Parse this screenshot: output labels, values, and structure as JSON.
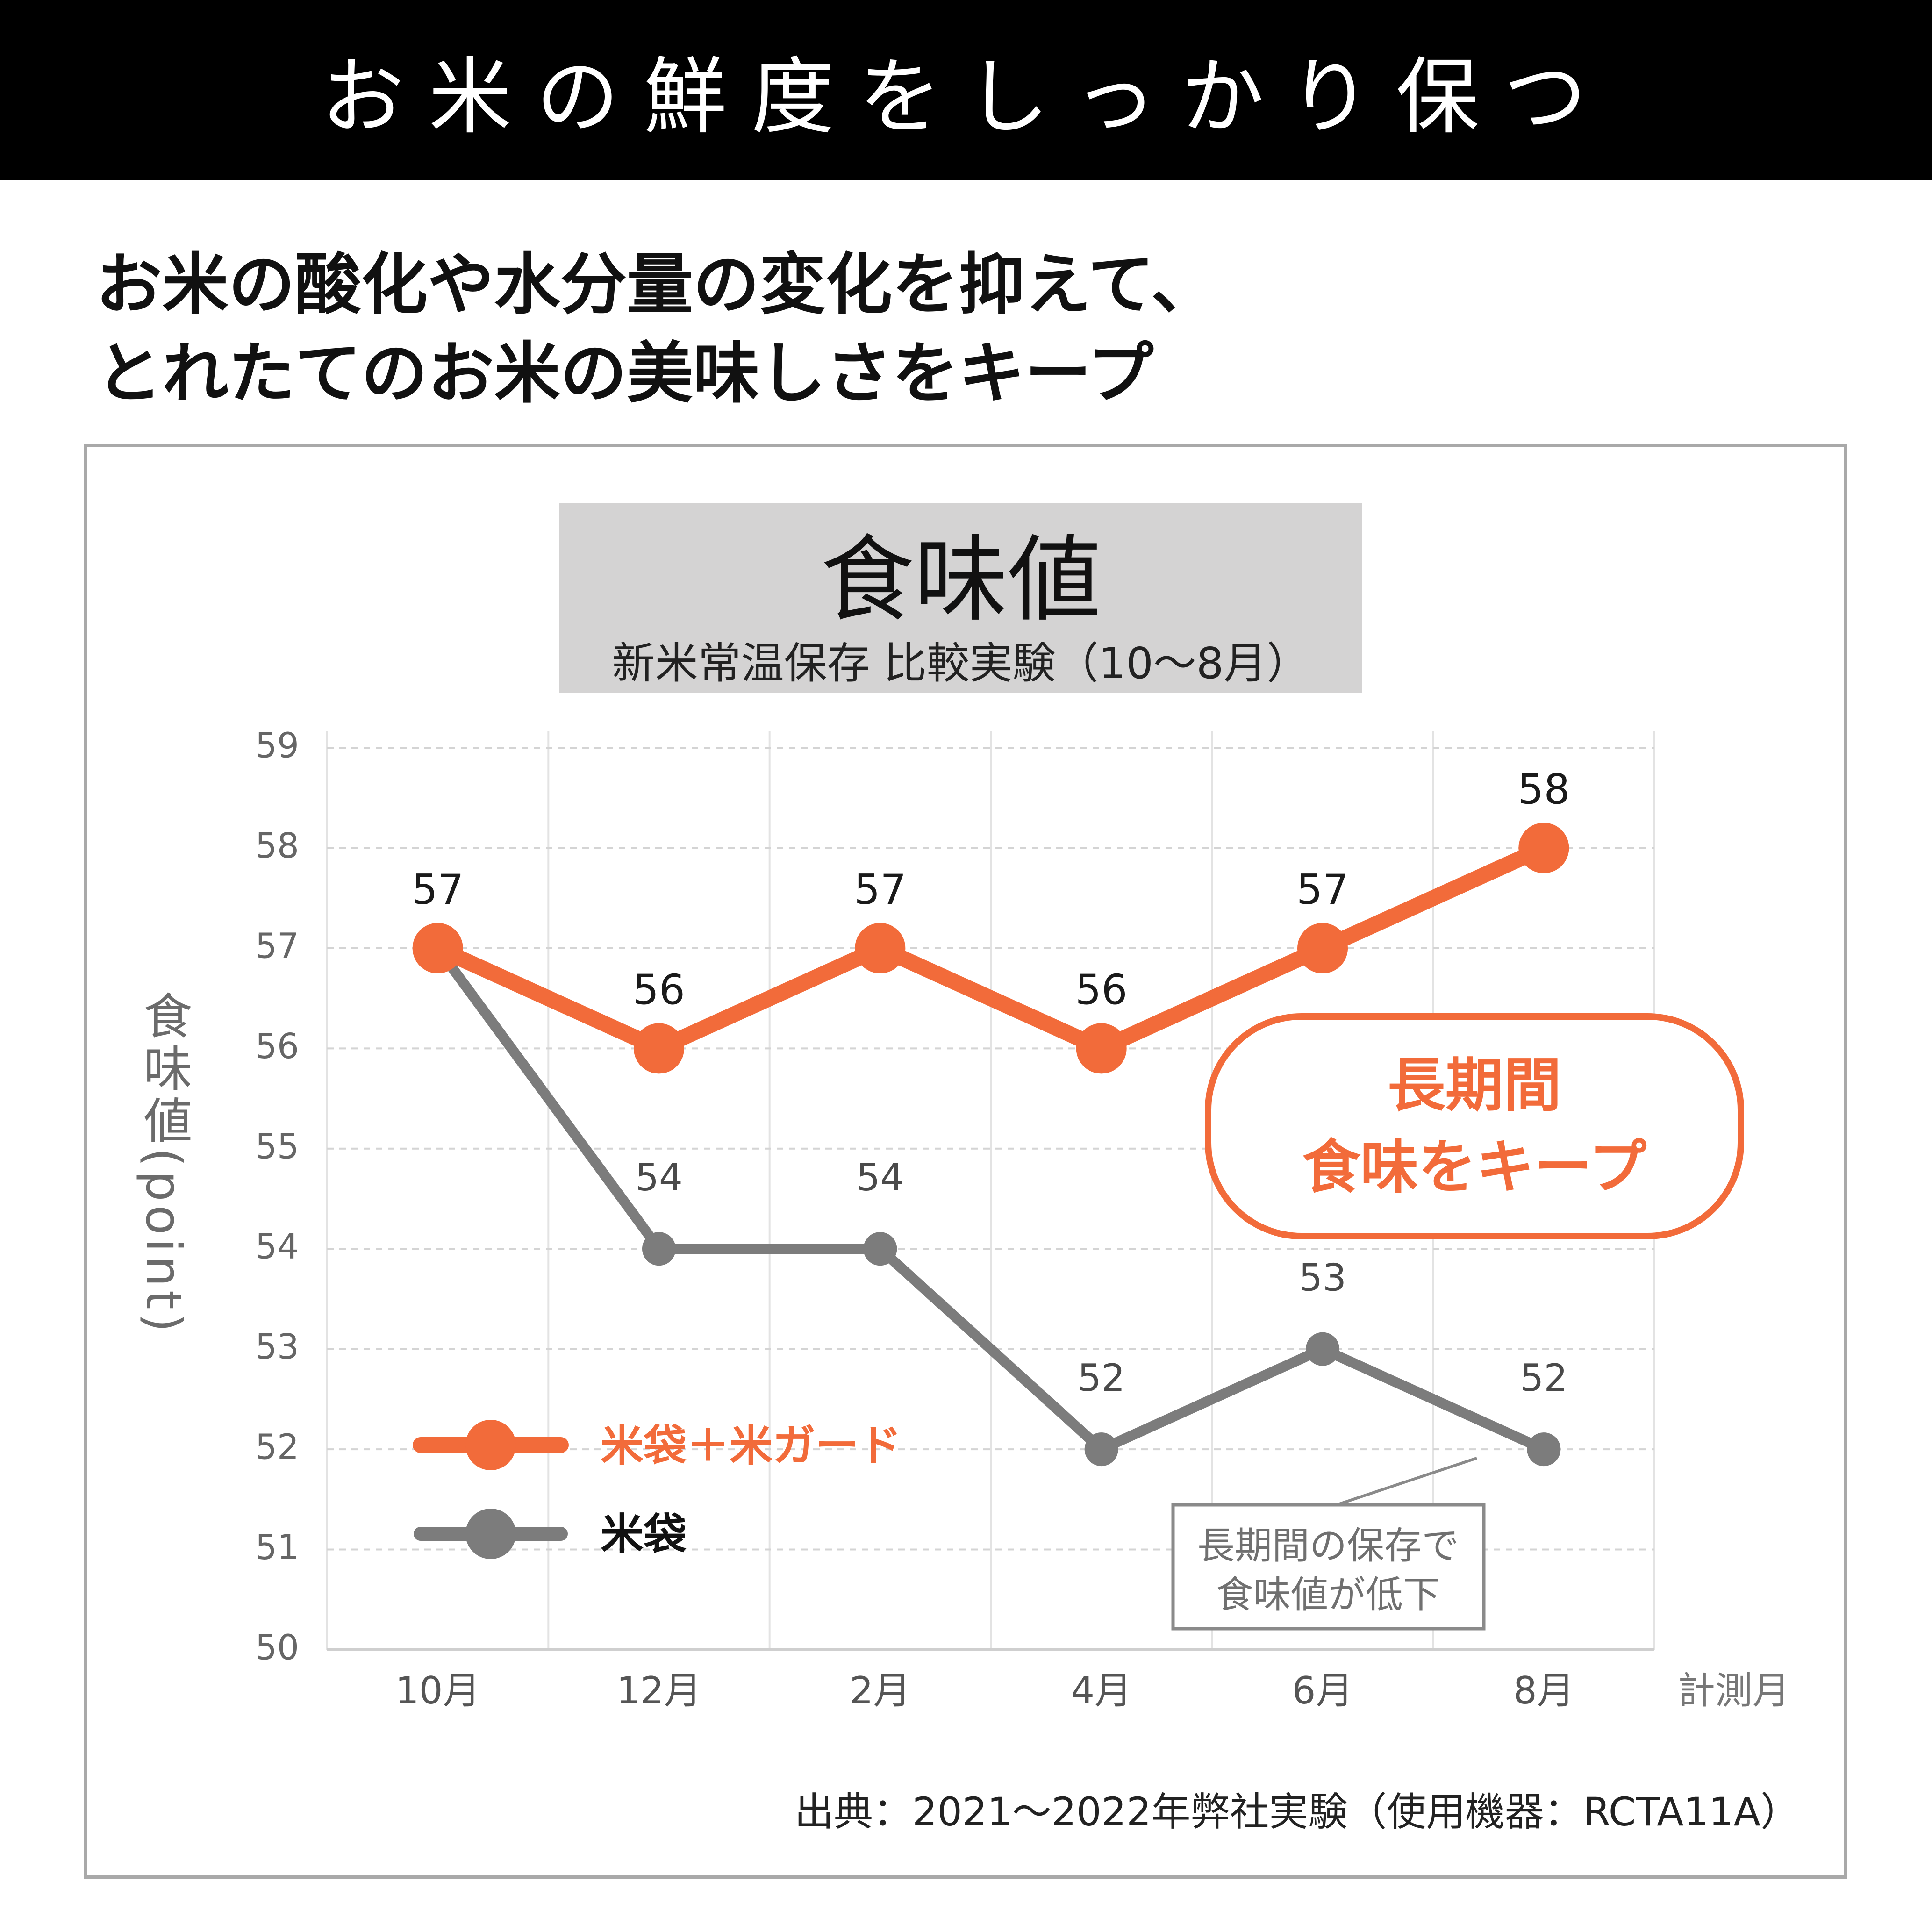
{
  "banner": {
    "title": "お米の鮮度をしっかり保つ"
  },
  "headline": {
    "line1": "お米の酸化や水分量の変化を抑えて、",
    "line2": "とれたてのお米の美味しさをキープ"
  },
  "source_note": "出典：2021〜2022年弊社実験（使用機器：RCTA11A）",
  "chart_data": {
    "type": "line",
    "title": "食味値",
    "subtitle": "新米常温保存 比較実験（10〜8月）",
    "ylabel": "食味値(point)",
    "xlabel": "計測月",
    "categories": [
      "10月",
      "12月",
      "2月",
      "4月",
      "6月",
      "8月"
    ],
    "ylim": [
      50,
      59
    ],
    "yticks": [
      59,
      58,
      57,
      56,
      55,
      54,
      53,
      52,
      51,
      50
    ],
    "grid": true,
    "legend_position": "lower-left",
    "series": [
      {
        "name": "米袋＋米ガード",
        "values": [
          57,
          56,
          57,
          56,
          57,
          58
        ],
        "color": "#f26b3a"
      },
      {
        "name": "米袋",
        "values": [
          57,
          54,
          54,
          52,
          53,
          52
        ],
        "color": "#7c7c7c"
      }
    ],
    "annotations": {
      "keep": {
        "line1": "長期間",
        "line2": "食味をキープ"
      },
      "drop": {
        "line1": "長期間の保存で",
        "line2": "食味値が低下"
      }
    }
  }
}
